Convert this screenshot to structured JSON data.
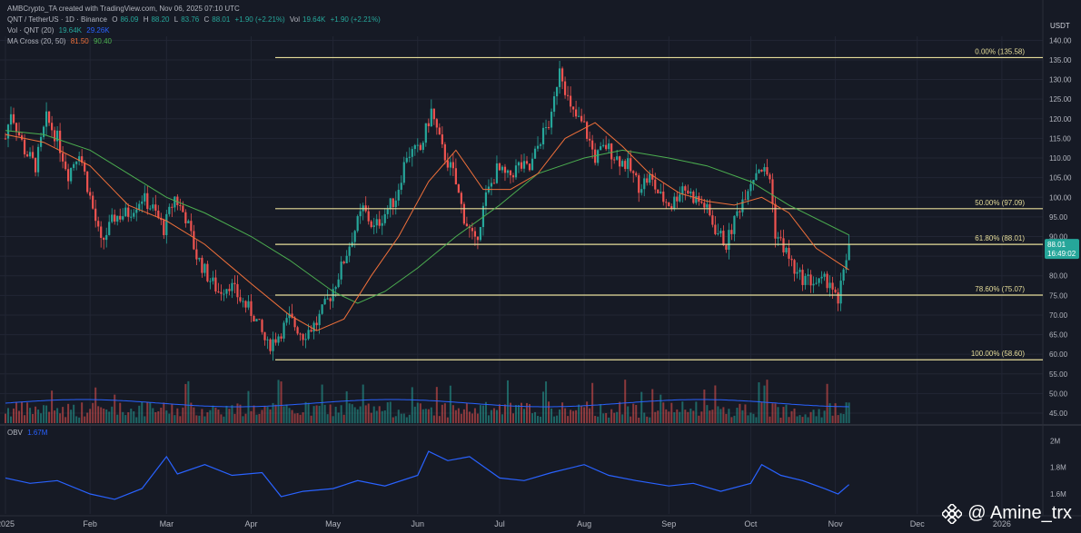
{
  "header": {
    "title": "AMBCrypto_TA created with TradingView.com, Nov 06, 2025 07:10 UTC",
    "symbol_line": "QNT / TetherUS · 1D · Binance",
    "ohlc": {
      "o_label": "O",
      "o": "86.09",
      "h_label": "H",
      "h": "88.20",
      "l_label": "L",
      "l": "83.76",
      "c_label": "C",
      "c": "88.01",
      "chg": "+1.90 (+2.21%)"
    },
    "vol_label": "Vol",
    "vol_value": "19.64K",
    "vol_chg": "+1.90 (+2.21%)",
    "vol_qnt_label": "Vol · QNT (20)",
    "vol_qnt_a": "19.64K",
    "vol_qnt_b": "29.26K",
    "ma_label": "MA Cross (20, 50)",
    "ma_a": "81.50",
    "ma_b": "90.40"
  },
  "obv": {
    "label": "OBV",
    "value": "1.67M"
  },
  "currency": "USDT",
  "price_tag": {
    "price": "88.01",
    "countdown": "16:49:02"
  },
  "watermark": "@ Amine_trx",
  "colors": {
    "bg": "#161a25",
    "up": "#26a69a",
    "down": "#ef5350",
    "fib": "#e6dd9a",
    "ma20": "#f0703a",
    "ma50": "#4caf50",
    "vol_ma": "#2962ff",
    "obv": "#2962ff",
    "grid": "#222634"
  },
  "chart_data": {
    "type": "candlestick",
    "y_axis_ticks": [
      140,
      135,
      130,
      125,
      120,
      115,
      110,
      105,
      100,
      95,
      90,
      85,
      80,
      75,
      70,
      65,
      60,
      55,
      50,
      45
    ],
    "ylim": [
      42,
      141
    ],
    "x_labels": [
      "2025",
      "Feb",
      "Mar",
      "Apr",
      "May",
      "Jun",
      "Jul",
      "Aug",
      "Sep",
      "Oct",
      "Nov",
      "Dec",
      "2026"
    ],
    "fib_levels": [
      {
        "label": "0.00% (135.58)",
        "value": 135.58
      },
      {
        "label": "50.00% (97.09)",
        "value": 97.09
      },
      {
        "label": "61.80% (88.01)",
        "value": 88.01
      },
      {
        "label": "78.60% (75.07)",
        "value": 75.07
      },
      {
        "label": "100.00% (58.60)",
        "value": 58.6
      }
    ],
    "price_path": [
      [
        "2025-01-01",
        115
      ],
      [
        "2025-01-03",
        122
      ],
      [
        "2025-01-08",
        112
      ],
      [
        "2025-01-12",
        108
      ],
      [
        "2025-01-16",
        120
      ],
      [
        "2025-01-20",
        115
      ],
      [
        "2025-01-24",
        106
      ],
      [
        "2025-01-28",
        112
      ],
      [
        "2025-02-01",
        100
      ],
      [
        "2025-02-05",
        88
      ],
      [
        "2025-02-10",
        95
      ],
      [
        "2025-02-15",
        96
      ],
      [
        "2025-02-20",
        100
      ],
      [
        "2025-02-24",
        97
      ],
      [
        "2025-02-28",
        92
      ],
      [
        "2025-03-04",
        100
      ],
      [
        "2025-03-08",
        95
      ],
      [
        "2025-03-12",
        85
      ],
      [
        "2025-03-16",
        80
      ],
      [
        "2025-03-20",
        76
      ],
      [
        "2025-03-24",
        78
      ],
      [
        "2025-03-28",
        74
      ],
      [
        "2025-04-02",
        70
      ],
      [
        "2025-04-07",
        62
      ],
      [
        "2025-04-11",
        65
      ],
      [
        "2025-04-15",
        69
      ],
      [
        "2025-04-20",
        65
      ],
      [
        "2025-04-25",
        68
      ],
      [
        "2025-04-30",
        75
      ],
      [
        "2025-05-04",
        82
      ],
      [
        "2025-05-08",
        90
      ],
      [
        "2025-05-12",
        97
      ],
      [
        "2025-05-16",
        92
      ],
      [
        "2025-05-20",
        96
      ],
      [
        "2025-05-24",
        100
      ],
      [
        "2025-05-28",
        111
      ],
      [
        "2025-06-02",
        112
      ],
      [
        "2025-06-06",
        122
      ],
      [
        "2025-06-10",
        112
      ],
      [
        "2025-06-14",
        106
      ],
      [
        "2025-06-18",
        95
      ],
      [
        "2025-06-22",
        88
      ],
      [
        "2025-06-26",
        100
      ],
      [
        "2025-06-30",
        107
      ],
      [
        "2025-07-04",
        105
      ],
      [
        "2025-07-08",
        108
      ],
      [
        "2025-07-12",
        107
      ],
      [
        "2025-07-16",
        115
      ],
      [
        "2025-07-20",
        120
      ],
      [
        "2025-07-23",
        134
      ],
      [
        "2025-07-27",
        122
      ],
      [
        "2025-08-01",
        118
      ],
      [
        "2025-08-05",
        110
      ],
      [
        "2025-08-09",
        113
      ],
      [
        "2025-08-13",
        110
      ],
      [
        "2025-08-17",
        108
      ],
      [
        "2025-08-21",
        103
      ],
      [
        "2025-08-25",
        105
      ],
      [
        "2025-08-29",
        100
      ],
      [
        "2025-09-02",
        98
      ],
      [
        "2025-09-06",
        103
      ],
      [
        "2025-09-10",
        100
      ],
      [
        "2025-09-14",
        98
      ],
      [
        "2025-09-18",
        92
      ],
      [
        "2025-09-22",
        88
      ],
      [
        "2025-09-26",
        96
      ],
      [
        "2025-09-30",
        103
      ],
      [
        "2025-10-04",
        108
      ],
      [
        "2025-10-08",
        105
      ],
      [
        "2025-10-10",
        91
      ],
      [
        "2025-10-14",
        86
      ],
      [
        "2025-10-18",
        80
      ],
      [
        "2025-10-22",
        79
      ],
      [
        "2025-10-26",
        78
      ],
      [
        "2025-10-30",
        79
      ],
      [
        "2025-11-02",
        72
      ],
      [
        "2025-11-04",
        82
      ],
      [
        "2025-11-06",
        88
      ]
    ],
    "ma20_path": [
      [
        "2025-01-01",
        116
      ],
      [
        "2025-01-15",
        114
      ],
      [
        "2025-02-01",
        108
      ],
      [
        "2025-02-15",
        98
      ],
      [
        "2025-03-01",
        94
      ],
      [
        "2025-03-15",
        88
      ],
      [
        "2025-04-01",
        78
      ],
      [
        "2025-04-15",
        70
      ],
      [
        "2025-04-25",
        66
      ],
      [
        "2025-05-05",
        69
      ],
      [
        "2025-05-15",
        80
      ],
      [
        "2025-05-25",
        90
      ],
      [
        "2025-06-05",
        104
      ],
      [
        "2025-06-15",
        112
      ],
      [
        "2025-06-25",
        102
      ],
      [
        "2025-07-05",
        102
      ],
      [
        "2025-07-15",
        106
      ],
      [
        "2025-07-25",
        115
      ],
      [
        "2025-08-05",
        119
      ],
      [
        "2025-08-15",
        113
      ],
      [
        "2025-08-25",
        106
      ],
      [
        "2025-09-05",
        101
      ],
      [
        "2025-09-15",
        99
      ],
      [
        "2025-09-25",
        98
      ],
      [
        "2025-10-05",
        100
      ],
      [
        "2025-10-15",
        96
      ],
      [
        "2025-10-25",
        87
      ],
      [
        "2025-11-06",
        81.5
      ]
    ],
    "ma50_path": [
      [
        "2025-01-01",
        117
      ],
      [
        "2025-01-15",
        116
      ],
      [
        "2025-02-01",
        112
      ],
      [
        "2025-02-15",
        106
      ],
      [
        "2025-03-01",
        100
      ],
      [
        "2025-03-15",
        96
      ],
      [
        "2025-04-01",
        90
      ],
      [
        "2025-04-15",
        84
      ],
      [
        "2025-05-01",
        76
      ],
      [
        "2025-05-10",
        73
      ],
      [
        "2025-05-20",
        76
      ],
      [
        "2025-06-01",
        82
      ],
      [
        "2025-06-15",
        90
      ],
      [
        "2025-07-01",
        98
      ],
      [
        "2025-07-15",
        106
      ],
      [
        "2025-08-01",
        110
      ],
      [
        "2025-08-15",
        112
      ],
      [
        "2025-09-01",
        110
      ],
      [
        "2025-09-15",
        108
      ],
      [
        "2025-10-01",
        104
      ],
      [
        "2025-10-15",
        98
      ],
      [
        "2025-11-06",
        90.4
      ]
    ],
    "obv_axis": [
      "2M",
      "1.8M",
      "1.6M"
    ],
    "obv_ylim": [
      1.45,
      2.05
    ],
    "obv_path": [
      [
        "2025-01-01",
        1.72
      ],
      [
        "2025-01-10",
        1.68
      ],
      [
        "2025-01-20",
        1.7
      ],
      [
        "2025-02-01",
        1.6
      ],
      [
        "2025-02-10",
        1.56
      ],
      [
        "2025-02-20",
        1.64
      ],
      [
        "2025-03-01",
        1.88
      ],
      [
        "2025-03-05",
        1.75
      ],
      [
        "2025-03-15",
        1.82
      ],
      [
        "2025-03-25",
        1.74
      ],
      [
        "2025-04-05",
        1.76
      ],
      [
        "2025-04-12",
        1.58
      ],
      [
        "2025-04-20",
        1.62
      ],
      [
        "2025-05-01",
        1.64
      ],
      [
        "2025-05-10",
        1.7
      ],
      [
        "2025-05-20",
        1.66
      ],
      [
        "2025-06-01",
        1.74
      ],
      [
        "2025-06-05",
        1.92
      ],
      [
        "2025-06-12",
        1.85
      ],
      [
        "2025-06-20",
        1.88
      ],
      [
        "2025-07-01",
        1.72
      ],
      [
        "2025-07-10",
        1.7
      ],
      [
        "2025-07-20",
        1.76
      ],
      [
        "2025-08-01",
        1.82
      ],
      [
        "2025-08-10",
        1.74
      ],
      [
        "2025-08-20",
        1.7
      ],
      [
        "2025-09-01",
        1.66
      ],
      [
        "2025-09-10",
        1.68
      ],
      [
        "2025-09-20",
        1.62
      ],
      [
        "2025-10-01",
        1.68
      ],
      [
        "2025-10-05",
        1.82
      ],
      [
        "2025-10-12",
        1.74
      ],
      [
        "2025-10-20",
        1.7
      ],
      [
        "2025-10-28",
        1.64
      ],
      [
        "2025-11-02",
        1.6
      ],
      [
        "2025-11-06",
        1.67
      ]
    ]
  }
}
